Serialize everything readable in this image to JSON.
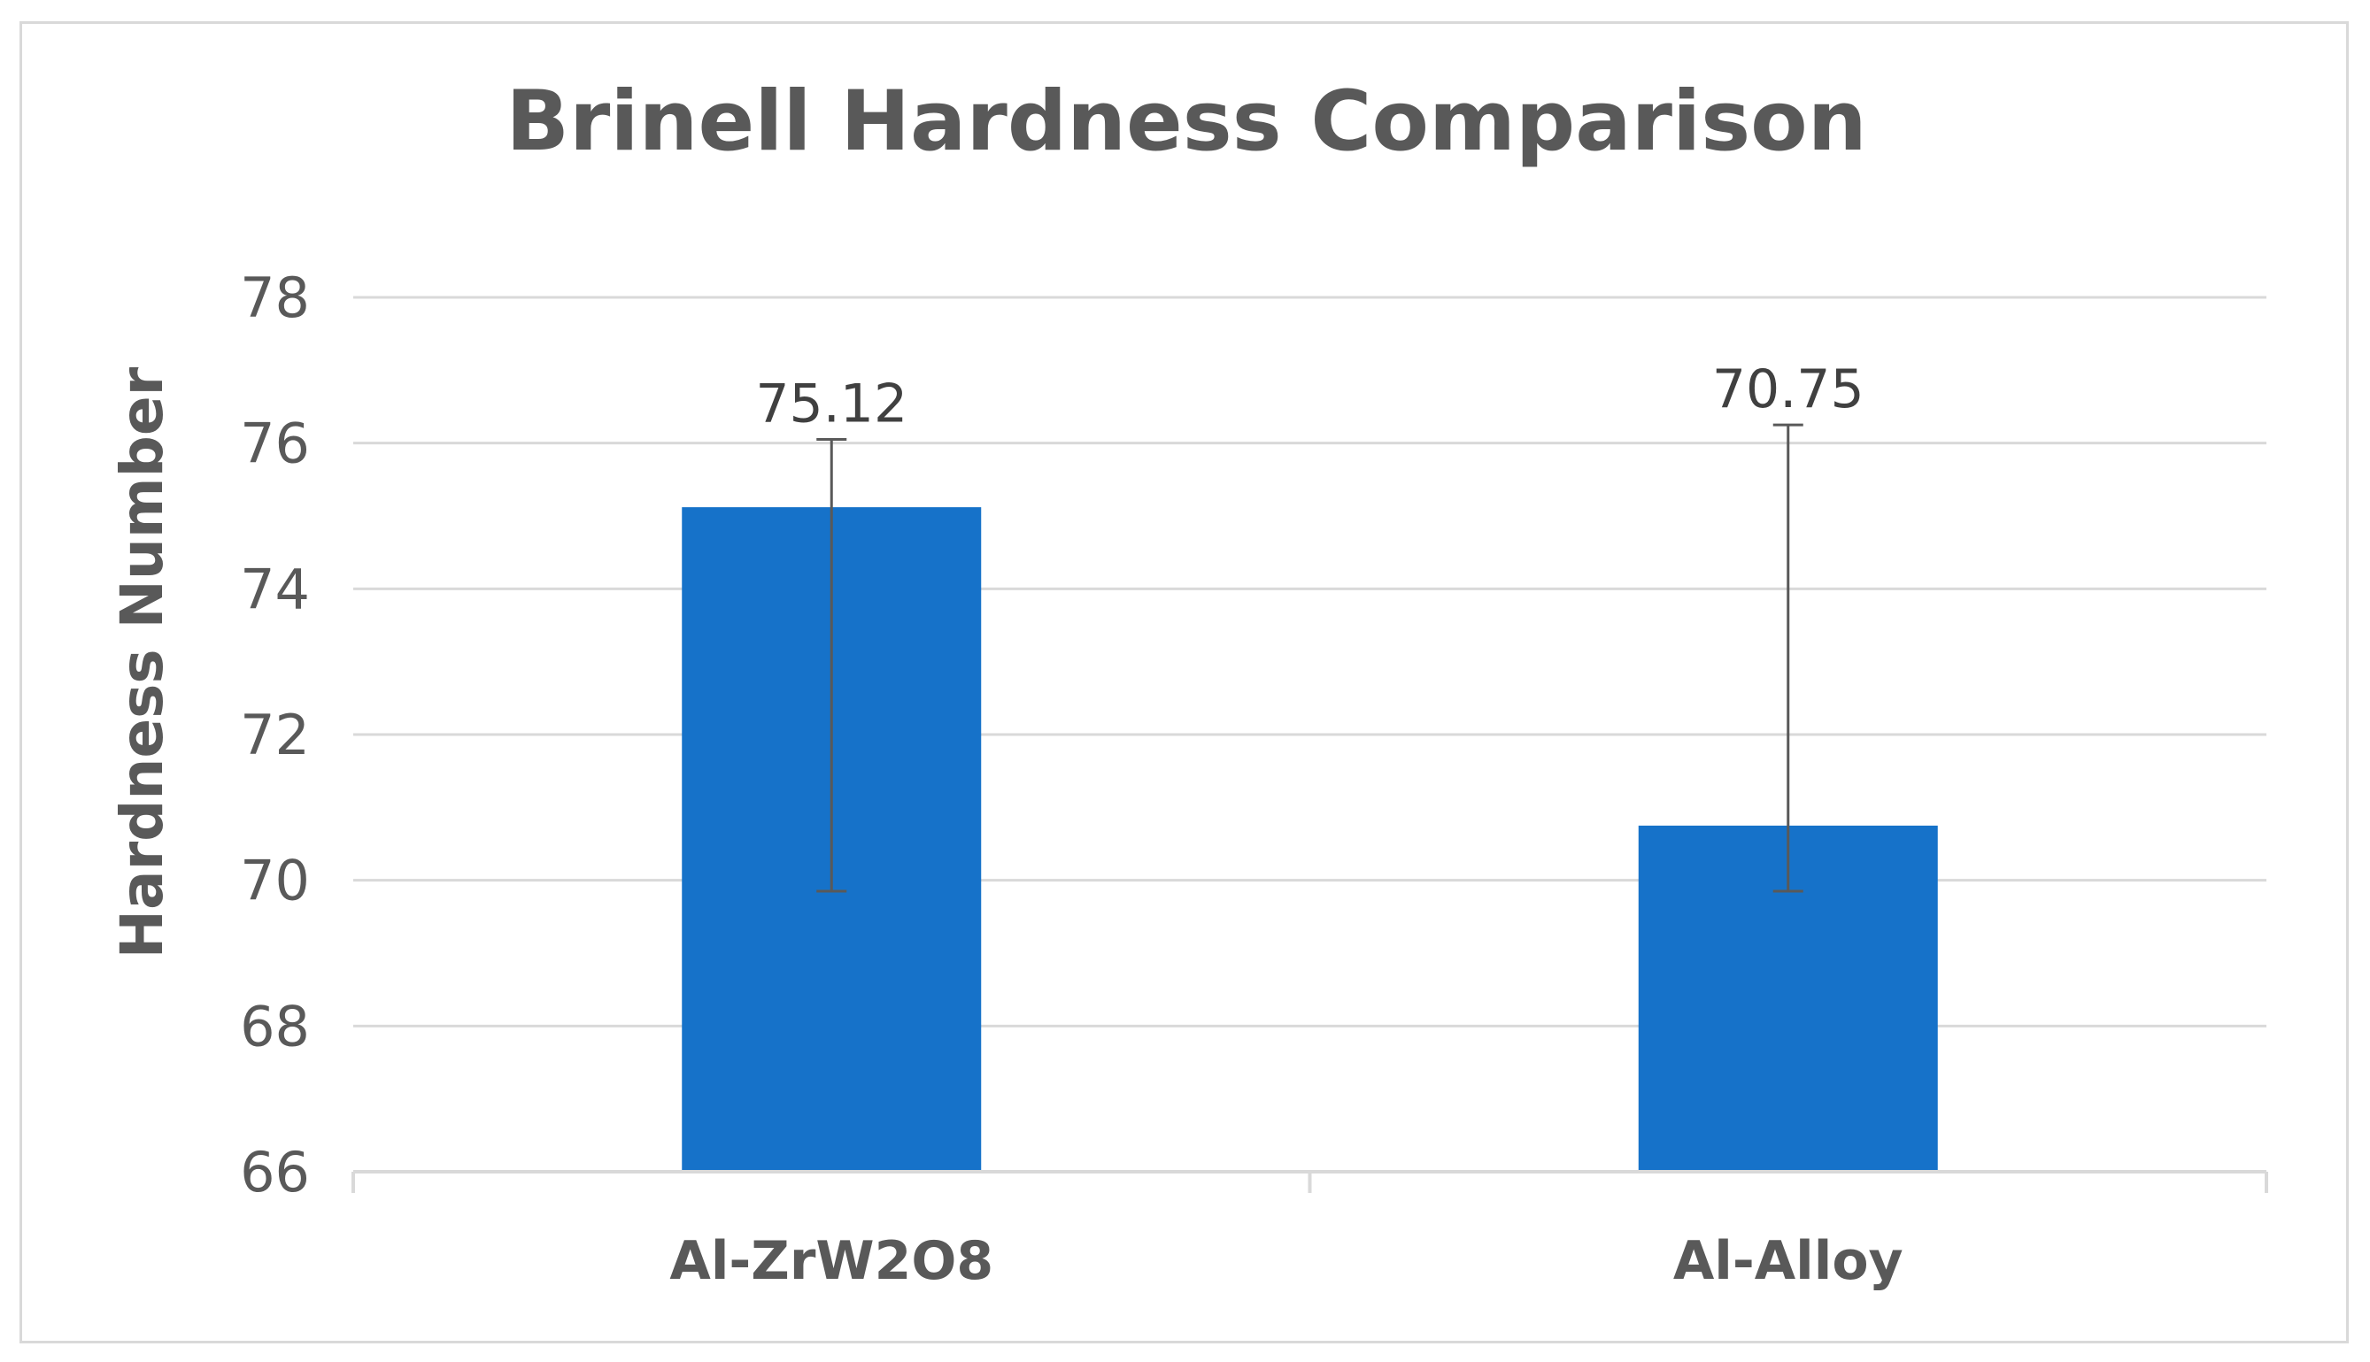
{
  "chart_data": {
    "type": "bar",
    "title": "Brinell Hardness Comparison",
    "xlabel": "",
    "ylabel": "Hardness Number",
    "categories": [
      "Al-ZrW2O8",
      "Al-Alloy"
    ],
    "values": [
      75.12,
      70.75
    ],
    "data_labels": [
      "75.12",
      "70.75"
    ],
    "error_bars": [
      {
        "low": 69.85,
        "high": 76.05
      },
      {
        "low": 69.85,
        "high": 76.25
      }
    ],
    "ylim": [
      66,
      78
    ],
    "yticks": [
      "66",
      "68",
      "70",
      "72",
      "74",
      "76",
      "78"
    ],
    "grid": true,
    "legend": "none",
    "bar_color": "#1672c9",
    "error_bar_color": "#595959",
    "grid_color": "#d9d9d9",
    "text_color": "#595959"
  }
}
